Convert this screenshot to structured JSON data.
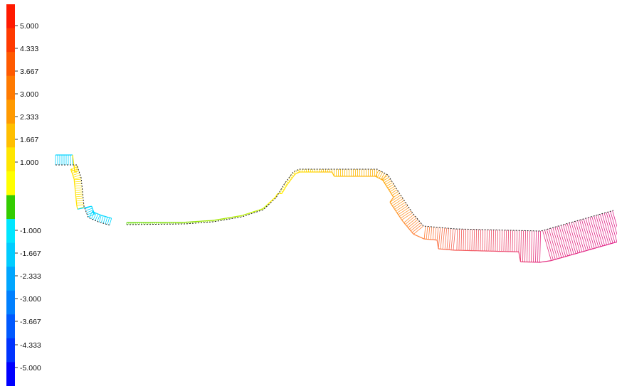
{
  "chart_data": {
    "type": "profile-plot",
    "colorbar": {
      "min": -5.0,
      "max": 5.0,
      "tick_labels": [
        "5.000",
        "4.333",
        "3.667",
        "3.000",
        "2.333",
        "1.667",
        "1.000",
        "-1.000",
        "-1.667",
        "-2.333",
        "-3.000",
        "-3.667",
        "-4.333",
        "-5.000"
      ],
      "tick_values": [
        5.0,
        4.333,
        3.667,
        3.0,
        2.333,
        1.667,
        1.0,
        -1.0,
        -1.667,
        -2.333,
        -3.0,
        -3.667,
        -4.333,
        -5.0
      ],
      "colors": [
        "#ff1a00",
        "#ff3a00",
        "#ff5a00",
        "#ff7a00",
        "#ff9a00",
        "#ffbf00",
        "#ffe600",
        "#ffff00",
        "#33cc00",
        "#00e6ff",
        "#00ccff",
        "#00a6ff",
        "#0080ff",
        "#0059ff",
        "#0033ff",
        "#0000ff"
      ]
    },
    "profile": {
      "x": [
        0,
        30,
        40,
        42,
        55,
        70,
        82,
        100,
        200,
        240,
        250,
        280,
        300,
        330,
        335,
        345,
        345,
        400,
        420,
        470,
        490,
        500,
        505,
        510,
        540,
        590,
        600,
        680,
        720
      ],
      "y": [
        0.0,
        0.0,
        -2.0,
        -3.0,
        -3.3,
        -3.4,
        -3.4,
        -3.4,
        -3.2,
        -2.8,
        -2.4,
        0.0,
        0.4,
        0.4,
        0.3,
        0.0,
        -3.5,
        -3.5,
        -3.5,
        -3.5,
        -3.5,
        -3.3,
        -3.0,
        -2.5,
        -2.0,
        -1.5,
        -1.5,
        -1.5,
        -1.5
      ],
      "values": [
        -1.3,
        -1.3,
        1.5,
        1.5,
        -1.4,
        -1.4,
        -1.4,
        1.0,
        1.0,
        0.8,
        0.8,
        2.0,
        2.2,
        2.2,
        2.0,
        2.5,
        3.5,
        4.0,
        4.2,
        4.5,
        4.6,
        4.7,
        4.8,
        4.8,
        4.9,
        5.0,
        5.0,
        5.0,
        5.0
      ]
    }
  }
}
